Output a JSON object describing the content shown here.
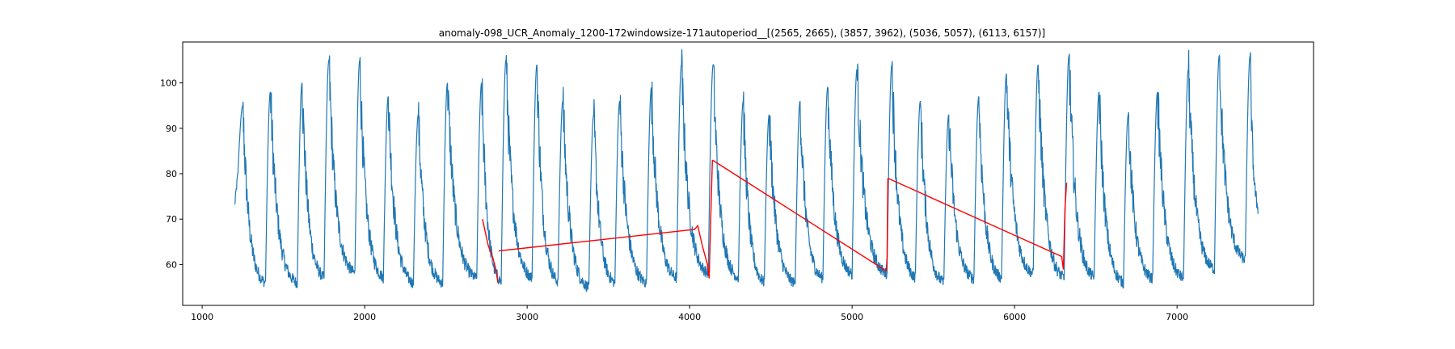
{
  "chart_data": {
    "type": "line",
    "title": "anomaly-098_UCR_Anomaly_1200-172windowsize-171autoperiod__[(2565, 2665), (3857, 3962), (5036, 5057), (6113, 6157)]",
    "xlabel": "",
    "ylabel": "",
    "xlim": [
      880,
      7840
    ],
    "ylim": [
      51,
      109
    ],
    "x_ticks": [
      1000,
      2000,
      3000,
      4000,
      5000,
      6000,
      7000
    ],
    "x_tick_labels": [
      "1000",
      "2000",
      "3000",
      "4000",
      "5000",
      "6000",
      "7000"
    ],
    "y_ticks": [
      60,
      70,
      80,
      90,
      100
    ],
    "y_tick_labels": [
      "60",
      "70",
      "80",
      "90",
      "100"
    ],
    "grid": false,
    "colors": {
      "main": "#1f77b4",
      "anomaly": "#ff0000"
    },
    "main_series": {
      "x_start": 1200,
      "x_end": 7500,
      "start_value": 73,
      "cycle_starts": [
        1220,
        1390,
        1585,
        1750,
        1940,
        2115,
        2300,
        2480,
        2690,
        2840,
        3030,
        3190,
        3380,
        3540,
        3735,
        3920,
        4115,
        4300,
        4460,
        4650,
        4820,
        5000,
        5215,
        5390,
        5565,
        5750,
        5920,
        6115,
        6305,
        6490,
        6670,
        6850,
        7040,
        7230,
        7420
      ],
      "peaks": [
        95,
        98,
        100,
        105,
        105,
        97,
        93,
        100,
        100,
        105,
        104,
        96,
        93,
        96,
        99,
        104,
        104,
        96,
        93,
        96,
        99,
        103,
        104,
        96,
        93,
        97,
        102,
        104,
        106,
        98,
        93,
        98,
        103,
        106,
        106
      ],
      "troughs": [
        55,
        55,
        56,
        57,
        56,
        55,
        55,
        56,
        55,
        56,
        55,
        54,
        55,
        55,
        56,
        57,
        56,
        55,
        55,
        56,
        57,
        57,
        56,
        55,
        56,
        56,
        57,
        56,
        56,
        55,
        56,
        56,
        58,
        60,
        70
      ],
      "end_value": 70
    },
    "anomaly_series": [
      {
        "x": [
          2725,
          2760,
          2790,
          2810,
          2820
        ],
        "y": [
          70,
          65,
          61,
          58,
          56
        ]
      },
      {
        "x": [
          2825,
          4030,
          4050,
          4080,
          4110,
          4120,
          4130,
          4140
        ],
        "y": [
          63,
          68,
          69,
          64,
          60,
          57,
          70,
          83
        ]
      },
      {
        "x": [
          4140,
          5210,
          5215,
          5220
        ],
        "y": [
          83,
          59,
          62,
          79
        ]
      },
      {
        "x": [
          5220,
          6290,
          6300,
          6310,
          6320
        ],
        "y": [
          79,
          61,
          58,
          72,
          78
        ]
      }
    ]
  }
}
